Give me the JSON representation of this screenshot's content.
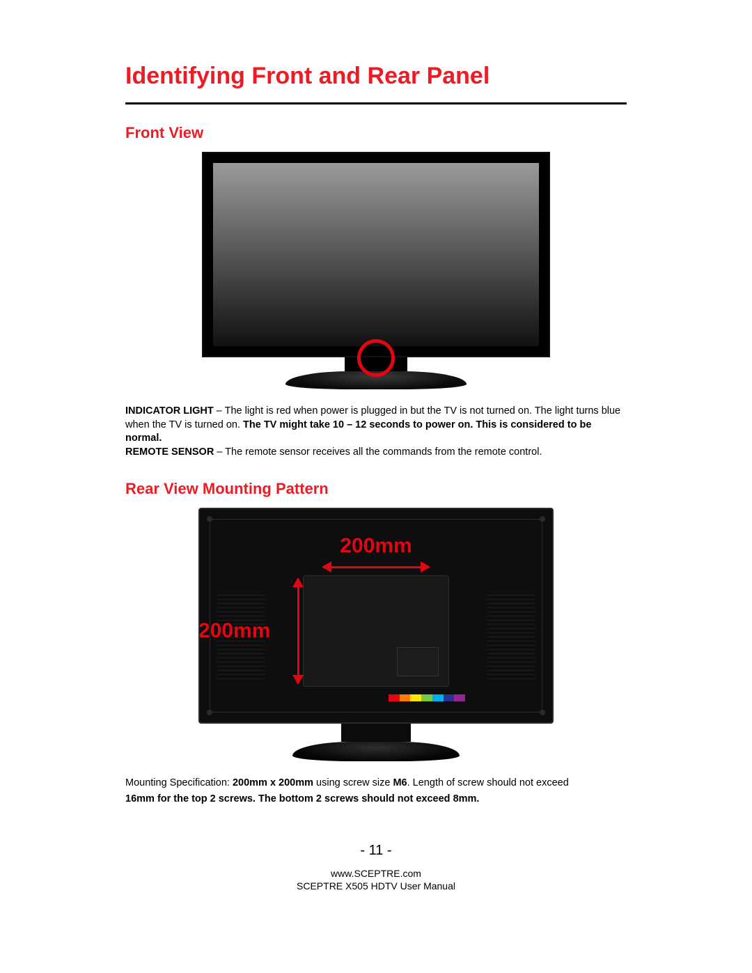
{
  "title": "Identifying Front and Rear Panel",
  "sections": {
    "front": {
      "heading": "Front View",
      "indicator": {
        "label": "INDICATOR LIGHT",
        "text_before_bold": " – The light is red when power is plugged in but the TV is not turned on.  The light turns blue when the TV is turned on. ",
        "bold": "The TV might take 10 – 12 seconds to power on. This is considered to be normal."
      },
      "remote": {
        "label": "REMOTE SENSOR",
        "text": " – The remote sensor receives all the commands from the remote control."
      },
      "circle_color": "#e20613"
    },
    "rear": {
      "heading": "Rear View Mounting Pattern",
      "dim_h": "200mm",
      "dim_v": "200mm",
      "dim_color": "#e20613",
      "color_strip": [
        "#e20613",
        "#ff7a00",
        "#ffe600",
        "#7ac943",
        "#00aeef",
        "#2e3192",
        "#92278f"
      ],
      "spec_prefix": "Mounting Specification: ",
      "spec_bold1": "200mm x 200mm",
      "spec_mid": " using screw size ",
      "spec_bold2": "M6",
      "spec_suffix": ". Length of screw should not exceed",
      "spec_line2": "16mm for the top 2 screws.  The bottom 2 screws should not exceed 8mm."
    }
  },
  "page_number": "- 11 -",
  "footer": {
    "url": "www.SCEPTRE.com",
    "manual": "SCEPTRE X505 HDTV User Manual"
  },
  "colors": {
    "red": "#ed1c24",
    "text": "#000000",
    "bg": "#ffffff"
  }
}
